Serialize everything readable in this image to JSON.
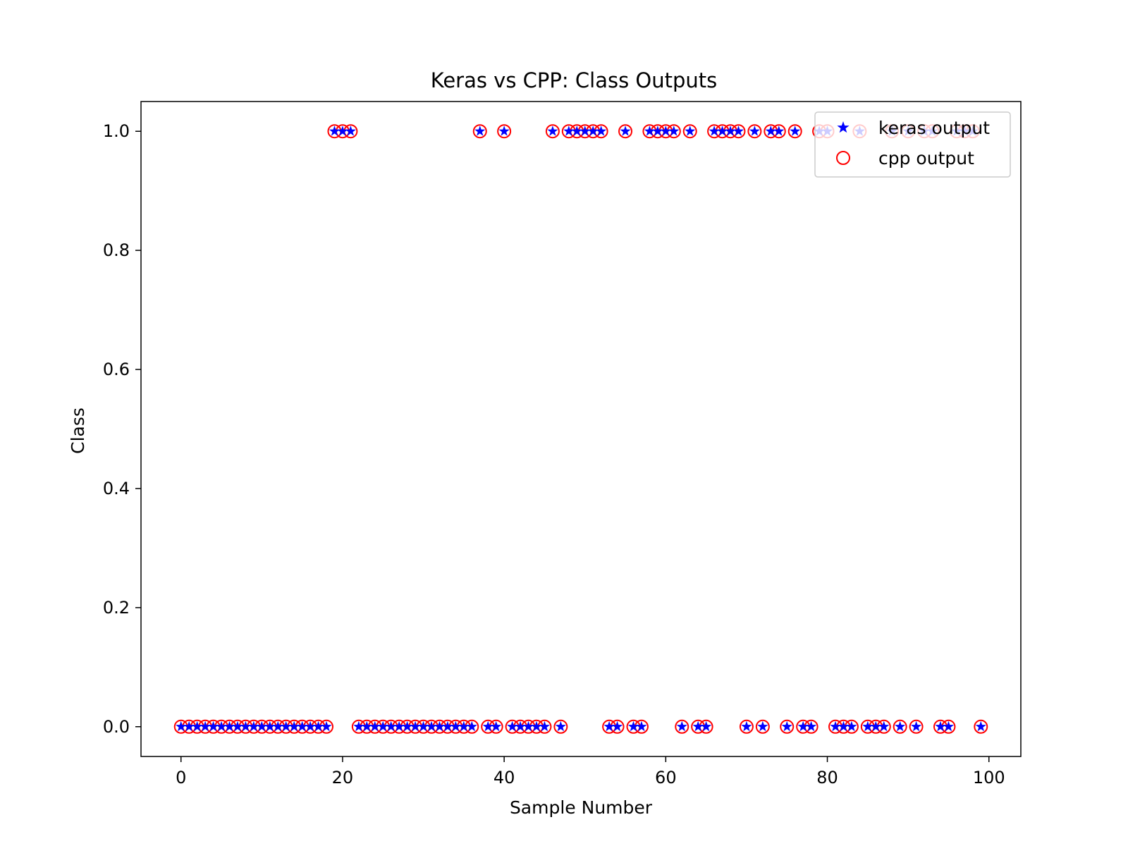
{
  "chart_data": {
    "type": "scatter",
    "title": "Keras vs CPP: Class Outputs",
    "xlabel": "Sample Number",
    "ylabel": "Class",
    "xlim": [
      -4.95,
      103.95
    ],
    "ylim": [
      -0.05,
      1.05
    ],
    "xticks": [
      0,
      20,
      40,
      60,
      80,
      100
    ],
    "xtick_labels": [
      "0",
      "20",
      "40",
      "60",
      "80",
      "100"
    ],
    "yticks": [
      0.0,
      0.2,
      0.4,
      0.6,
      0.8,
      1.0
    ],
    "ytick_labels": [
      "0.0",
      "0.2",
      "0.4",
      "0.6",
      "0.8",
      "1.0"
    ],
    "grid": false,
    "legend_position": "top-right",
    "x": [
      0,
      1,
      2,
      3,
      4,
      5,
      6,
      7,
      8,
      9,
      10,
      11,
      12,
      13,
      14,
      15,
      16,
      17,
      18,
      19,
      20,
      21,
      22,
      23,
      24,
      25,
      26,
      27,
      28,
      29,
      30,
      31,
      32,
      33,
      34,
      35,
      36,
      37,
      38,
      39,
      40,
      41,
      42,
      43,
      44,
      45,
      46,
      47,
      48,
      49,
      50,
      51,
      52,
      53,
      54,
      55,
      56,
      57,
      58,
      59,
      60,
      61,
      62,
      63,
      64,
      65,
      66,
      67,
      68,
      69,
      70,
      71,
      72,
      73,
      74,
      75,
      76,
      77,
      78,
      79,
      80,
      81,
      82,
      83,
      84,
      85,
      86,
      87,
      88,
      89,
      90,
      91,
      92,
      93,
      94,
      95,
      96,
      97,
      98,
      99
    ],
    "series": [
      {
        "name": "keras output",
        "marker": "star",
        "color": "#0000ff",
        "values": [
          0,
          0,
          0,
          0,
          0,
          0,
          0,
          0,
          0,
          0,
          0,
          0,
          0,
          0,
          0,
          0,
          0,
          0,
          0,
          1,
          1,
          1,
          0,
          0,
          0,
          0,
          0,
          0,
          0,
          0,
          0,
          0,
          0,
          0,
          0,
          0,
          0,
          1,
          0,
          0,
          1,
          0,
          0,
          0,
          0,
          0,
          1,
          0,
          1,
          1,
          1,
          1,
          1,
          0,
          0,
          1,
          0,
          0,
          1,
          1,
          1,
          1,
          0,
          1,
          0,
          0,
          1,
          1,
          1,
          1,
          0,
          1,
          0,
          1,
          1,
          0,
          1,
          0,
          0,
          1,
          1,
          0,
          0,
          0,
          1,
          0,
          0,
          0,
          1,
          0,
          1,
          0,
          1,
          1,
          0,
          0,
          1,
          1,
          1,
          0
        ]
      },
      {
        "name": "cpp output",
        "marker": "circle",
        "color": "#ff0000",
        "values": [
          0,
          0,
          0,
          0,
          0,
          0,
          0,
          0,
          0,
          0,
          0,
          0,
          0,
          0,
          0,
          0,
          0,
          0,
          0,
          1,
          1,
          1,
          0,
          0,
          0,
          0,
          0,
          0,
          0,
          0,
          0,
          0,
          0,
          0,
          0,
          0,
          0,
          1,
          0,
          0,
          1,
          0,
          0,
          0,
          0,
          0,
          1,
          0,
          1,
          1,
          1,
          1,
          1,
          0,
          0,
          1,
          0,
          0,
          1,
          1,
          1,
          1,
          0,
          1,
          0,
          0,
          1,
          1,
          1,
          1,
          0,
          1,
          0,
          1,
          1,
          0,
          1,
          0,
          0,
          1,
          1,
          0,
          0,
          0,
          1,
          0,
          0,
          0,
          1,
          0,
          1,
          0,
          1,
          1,
          0,
          0,
          1,
          1,
          1,
          0
        ]
      }
    ]
  }
}
